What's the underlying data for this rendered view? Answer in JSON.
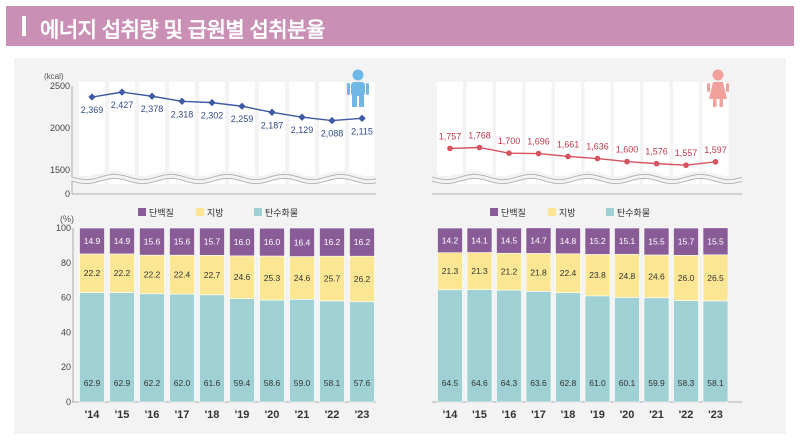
{
  "header": {
    "title": "에너지 섭취량 및 급원별 섭취분율"
  },
  "years": [
    "'14",
    "'15",
    "'16",
    "'17",
    "'18",
    "'19",
    "'20",
    "'21",
    "'22",
    "'23"
  ],
  "legend": {
    "protein": "단백질",
    "fat": "지방",
    "carb": "탄수화물"
  },
  "colors": {
    "protein": "#8a5c97",
    "fat": "#fbe693",
    "carb": "#9fd1d4",
    "male_line": "#3e5aa5",
    "female_line": "#d6525e",
    "male_icon": "#6fb8e6",
    "female_icon": "#f2a09b"
  },
  "chart_data": [
    {
      "type": "line",
      "panel": "male",
      "ylabel": "(kcal)",
      "yticks": [
        0,
        1500,
        2000,
        2500
      ],
      "x": [
        "'14",
        "'15",
        "'16",
        "'17",
        "'18",
        "'19",
        "'20",
        "'21",
        "'22",
        "'23"
      ],
      "values": [
        2369,
        2427,
        2378,
        2318,
        2302,
        2259,
        2187,
        2129,
        2088,
        2115
      ],
      "labels": [
        "2,369",
        "2,427",
        "2,378",
        "2,318",
        "2,302",
        "2,259",
        "2,187",
        "2,129",
        "2,088",
        "2,115"
      ]
    },
    {
      "type": "line",
      "panel": "female",
      "x": [
        "'14",
        "'15",
        "'16",
        "'17",
        "'18",
        "'19",
        "'20",
        "'21",
        "'22",
        "'23"
      ],
      "values": [
        1757,
        1768,
        1700,
        1696,
        1661,
        1636,
        1600,
        1576,
        1557,
        1597
      ],
      "labels": [
        "1,757",
        "1,768",
        "1,700",
        "1,696",
        "1,661",
        "1,636",
        "1,600",
        "1,576",
        "1,557",
        "1,597"
      ]
    },
    {
      "type": "bar",
      "stacked": true,
      "panel": "male",
      "ylabel": "(%)",
      "ylim": [
        0,
        100
      ],
      "yticks": [
        0,
        20,
        40,
        60,
        80,
        100
      ],
      "categories": [
        "'14",
        "'15",
        "'16",
        "'17",
        "'18",
        "'19",
        "'20",
        "'21",
        "'22",
        "'23"
      ],
      "series": [
        {
          "name": "탄수화물",
          "values": [
            62.9,
            62.9,
            62.2,
            62.0,
            61.6,
            59.4,
            58.6,
            59.0,
            58.1,
            57.6
          ]
        },
        {
          "name": "지방",
          "values": [
            22.2,
            22.2,
            22.2,
            22.4,
            22.7,
            24.6,
            25.3,
            24.6,
            25.7,
            26.2
          ]
        },
        {
          "name": "단백질",
          "values": [
            14.9,
            14.9,
            15.6,
            15.6,
            15.7,
            16.0,
            16.0,
            16.4,
            16.2,
            16.2
          ]
        }
      ]
    },
    {
      "type": "bar",
      "stacked": true,
      "panel": "female",
      "ylim": [
        0,
        100
      ],
      "categories": [
        "'14",
        "'15",
        "'16",
        "'17",
        "'18",
        "'19",
        "'20",
        "'21",
        "'22",
        "'23"
      ],
      "series": [
        {
          "name": "탄수화물",
          "values": [
            64.5,
            64.6,
            64.3,
            63.6,
            62.8,
            61.0,
            60.1,
            59.9,
            58.3,
            58.1
          ]
        },
        {
          "name": "지방",
          "values": [
            21.3,
            21.3,
            21.2,
            21.8,
            22.4,
            23.8,
            24.8,
            24.6,
            26.0,
            26.5
          ]
        },
        {
          "name": "단백질",
          "values": [
            14.2,
            14.1,
            14.5,
            14.7,
            14.8,
            15.2,
            15.1,
            15.5,
            15.7,
            15.5
          ]
        }
      ]
    }
  ]
}
